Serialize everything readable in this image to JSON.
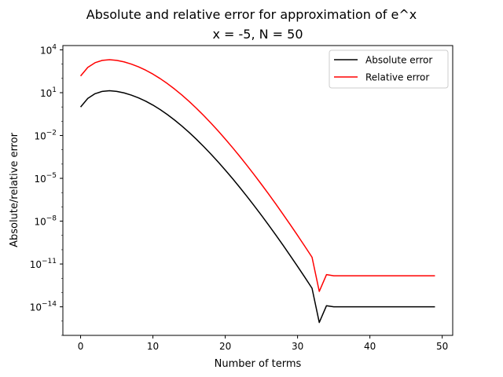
{
  "chart_data": {
    "type": "line",
    "title": "Absolute and relative error for approximation of e^x",
    "subtitle": "x = -5, N = 50",
    "xlabel": "Number of terms",
    "ylabel": "Absolute/relative error",
    "yscale": "log",
    "xlim": [
      -2.45,
      51.45
    ],
    "ylim": [
      1e-16,
      20000
    ],
    "xticks": [
      0,
      10,
      20,
      30,
      40,
      50
    ],
    "xtick_labels": [
      "0",
      "10",
      "20",
      "30",
      "40",
      "50"
    ],
    "yticks": [
      {
        "value": 10000,
        "base": "10",
        "exp": "4"
      },
      {
        "value": 10,
        "base": "10",
        "exp": "1"
      },
      {
        "value": 0.01,
        "base": "10",
        "exp": "−2"
      },
      {
        "value": 1e-05,
        "base": "10",
        "exp": "−5"
      },
      {
        "value": 1e-08,
        "base": "10",
        "exp": "−8"
      },
      {
        "value": 1e-11,
        "base": "10",
        "exp": "−11"
      },
      {
        "value": 1e-14,
        "base": "10",
        "exp": "−14"
      }
    ],
    "grid": false,
    "legend_position": "top-right",
    "x": [
      0,
      1,
      2,
      3,
      4,
      5,
      6,
      7,
      8,
      9,
      10,
      11,
      12,
      13,
      14,
      15,
      16,
      17,
      18,
      19,
      20,
      21,
      22,
      23,
      24,
      25,
      26,
      27,
      28,
      29,
      30,
      31,
      32,
      33,
      34,
      35,
      36,
      37,
      38,
      39,
      40,
      41,
      42,
      43,
      44,
      45,
      46,
      47,
      48,
      49
    ],
    "series": [
      {
        "name": "Absolute error",
        "color": "#000000",
        "values": [
          0.99326,
          4.00674,
          8.49326,
          12.3399,
          13.7018,
          12.3398,
          9.6999,
          6.8002,
          4.3782,
          2.539,
          1.3519,
          0.6541,
          0.2925,
          0.1207,
          0.04633,
          0.01654,
          0.005531,
          0.001736,
          0.0005137,
          0.0001439,
          3.832e-05,
          9.709e-06,
          2.349e-06,
          5.442e-07,
          1.21e-07,
          2.587e-08,
          5.327e-09,
          1.058e-09,
          2.031e-10,
          3.771e-11,
          6.783e-12,
          1.183e-12,
          2.003e-13,
          8e-16,
          1.2e-14,
          1e-14,
          1e-14,
          1e-14,
          1e-14,
          1e-14,
          1e-14,
          1e-14,
          1e-14,
          1e-14,
          1e-14,
          1e-14,
          1e-14,
          1e-14,
          1e-14,
          1e-14
        ]
      },
      {
        "name": "Relative error",
        "color": "#ff0000",
        "values": [
          147.41,
          594.65,
          1260.5,
          1831.4,
          2033.5,
          1831.4,
          1439.6,
          1009.2,
          649.8,
          376.8,
          200.6,
          97.08,
          43.41,
          17.91,
          6.876,
          2.455,
          0.8209,
          0.2576,
          0.07624,
          0.02136,
          0.005687,
          0.001441,
          0.0003486,
          8.077e-05,
          1.796e-05,
          3.839e-06,
          7.906e-07,
          1.57e-07,
          3.014e-08,
          5.597e-09,
          1.007e-09,
          1.756e-10,
          2.973e-11,
          1.2e-13,
          1.8e-12,
          1.5e-12,
          1.5e-12,
          1.5e-12,
          1.5e-12,
          1.5e-12,
          1.5e-12,
          1.5e-12,
          1.5e-12,
          1.5e-12,
          1.5e-12,
          1.5e-12,
          1.5e-12,
          1.5e-12,
          1.5e-12,
          1.5e-12
        ]
      }
    ]
  }
}
